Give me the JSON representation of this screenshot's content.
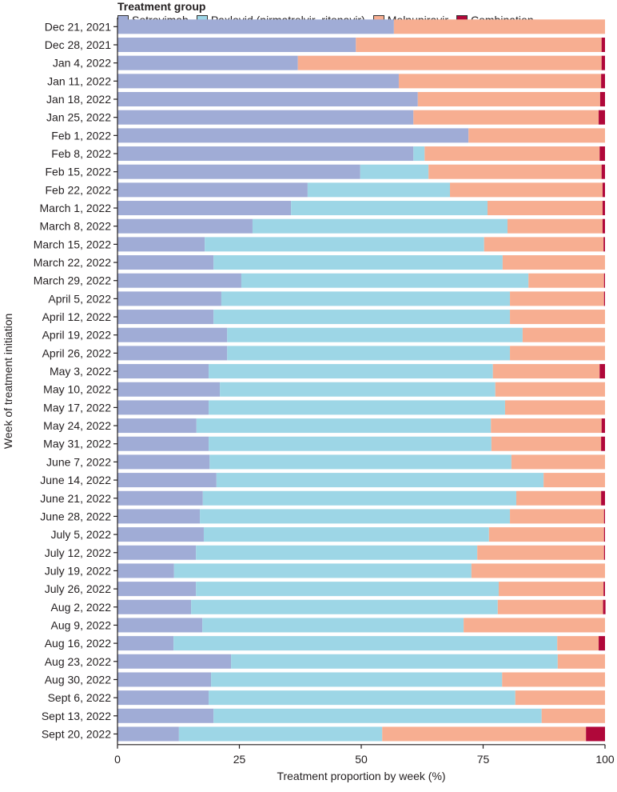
{
  "chart_data": {
    "type": "bar",
    "orientation": "horizontal",
    "stacked": true,
    "legend_title": "Treatment group",
    "legend_placement": "top",
    "xlabel": "Treatment proportion by week (%)",
    "ylabel": "Week of treatment initiation",
    "xlim": [
      0,
      100
    ],
    "xticks": [
      "0",
      "25",
      "50",
      "75",
      "100"
    ],
    "categories": [
      "Dec 21, 2021",
      "Dec 28, 2021",
      "Jan 4, 2022",
      "Jan 11, 2022",
      "Jan 18, 2022",
      "Jan 25, 2022",
      "Feb 1, 2022",
      "Feb 8, 2022",
      "Feb 15, 2022",
      "Feb 22, 2022",
      "March 1, 2022",
      "March 8, 2022",
      "March 15, 2022",
      "March 22, 2022",
      "March 29, 2022",
      "April 5, 2022",
      "April 12, 2022",
      "April 19, 2022",
      "April 26, 2022",
      "May 3, 2022",
      "May 10, 2022",
      "May 17, 2022",
      "May 24, 2022",
      "May 31, 2022",
      "June 7, 2022",
      "June 14, 2022",
      "June 21, 2022",
      "June 28, 2022",
      "July 5, 2022",
      "July 12, 2022",
      "July 19, 2022",
      "July 26, 2022",
      "Aug 2, 2022",
      "Aug 9, 2022",
      "Aug 16, 2022",
      "Aug 23, 2022",
      "Aug 30, 2022",
      "Sept 6, 2022",
      "Sept 13, 2022",
      "Sept 20, 2022"
    ],
    "series": [
      {
        "name": "Sotrovimab",
        "color": "#a0acd6",
        "values": [
          56.7,
          48.9,
          37.0,
          57.7,
          61.6,
          60.7,
          72.0,
          60.7,
          49.8,
          39.0,
          35.6,
          27.7,
          17.9,
          19.7,
          25.4,
          21.3,
          19.7,
          22.5,
          22.5,
          18.7,
          21.0,
          18.7,
          16.2,
          18.7,
          18.9,
          20.3,
          17.5,
          16.9,
          17.7,
          16.1,
          11.6,
          16.1,
          15.1,
          17.4,
          11.5,
          23.3,
          19.2,
          18.7,
          19.7,
          12.6
        ]
      },
      {
        "name": "Paxlovid (nirmatrelvir–ritonavir)",
        "color": "#9dd6e6",
        "values": [
          0,
          0,
          0,
          0,
          0,
          0,
          0,
          2.3,
          14.0,
          29.2,
          40.3,
          52.3,
          57.3,
          59.3,
          58.9,
          59.2,
          60.8,
          60.6,
          58.0,
          58.3,
          56.5,
          60.8,
          60.4,
          58.0,
          61.9,
          67.1,
          64.3,
          63.6,
          58.5,
          57.7,
          61.0,
          62.1,
          62.9,
          53.6,
          78.7,
          67.0,
          59.7,
          62.9,
          67.3,
          41.7
        ]
      },
      {
        "name": "Molnupiravir",
        "color": "#f7ae91",
        "values": [
          43.3,
          50.4,
          62.3,
          41.5,
          37.4,
          38.0,
          28.0,
          35.9,
          35.5,
          31.3,
          23.6,
          19.5,
          24.5,
          21.0,
          15.5,
          19.3,
          19.5,
          16.9,
          19.5,
          21.9,
          22.5,
          20.5,
          22.7,
          22.5,
          19.2,
          12.6,
          17.4,
          19.3,
          23.6,
          26.0,
          27.4,
          21.5,
          21.6,
          29.0,
          8.5,
          9.7,
          21.1,
          18.4,
          13.0,
          41.8
        ]
      },
      {
        "name": "Combination",
        "color": "#b0083a",
        "values": [
          0,
          0.7,
          0.7,
          0.8,
          1.0,
          1.3,
          0,
          1.1,
          0.7,
          0.5,
          0.5,
          0.5,
          0.3,
          0,
          0.2,
          0.2,
          0,
          0,
          0,
          1.1,
          0,
          0,
          0.7,
          0.8,
          0,
          0,
          0.8,
          0.2,
          0.2,
          0.2,
          0,
          0.3,
          0.5,
          0,
          1.3,
          0,
          0,
          0,
          0,
          3.9
        ]
      }
    ]
  }
}
